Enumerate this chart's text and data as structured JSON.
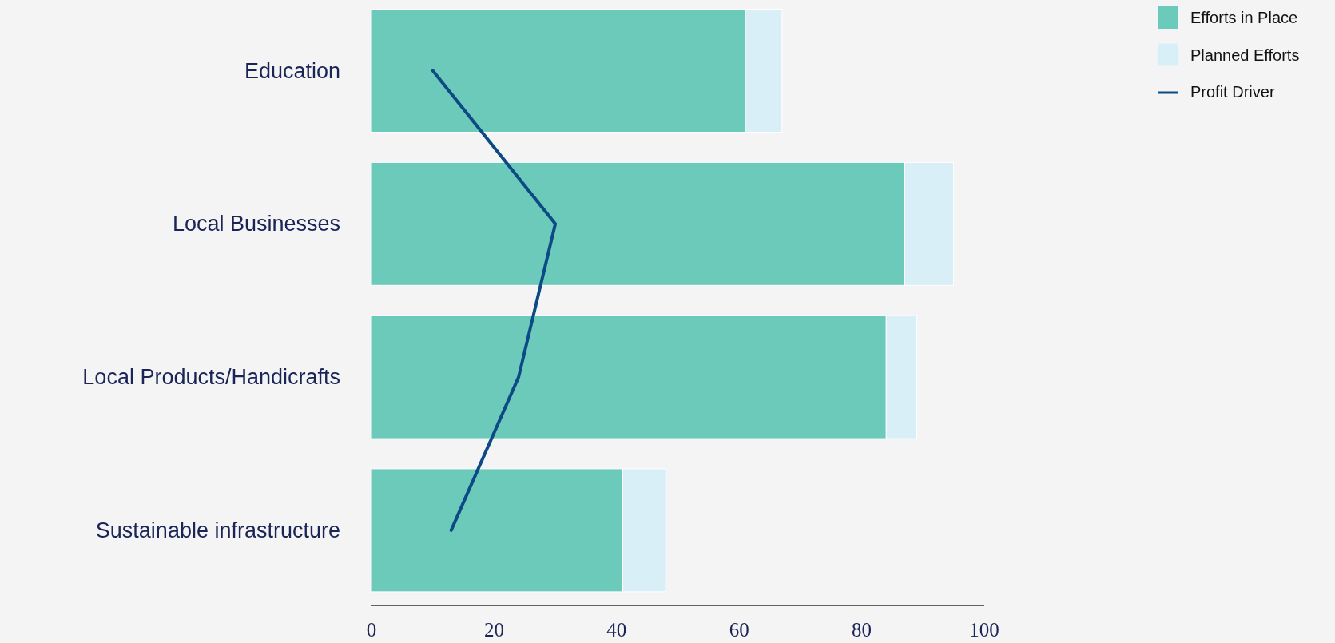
{
  "chart_data": {
    "type": "bar",
    "orientation": "horizontal",
    "stacked": true,
    "categories": [
      "Education",
      "Local Businesses",
      "Local Products/Handicrafts",
      "Sustainable infrastructure"
    ],
    "series": [
      {
        "name": "Efforts in Place",
        "color": "#6ccabb",
        "values": [
          61,
          87,
          84,
          41
        ]
      },
      {
        "name": "Planned Efforts",
        "color": "#d8eff7",
        "values": [
          6,
          8,
          5,
          7
        ]
      },
      {
        "name": "Profit Driver",
        "type": "line",
        "color": "#0d4a85",
        "values": [
          10,
          30,
          24,
          13
        ]
      }
    ],
    "xlim": [
      0,
      100
    ],
    "xticks": [
      0,
      20,
      40,
      60,
      80,
      100
    ],
    "grid": false,
    "legend": "top right"
  }
}
